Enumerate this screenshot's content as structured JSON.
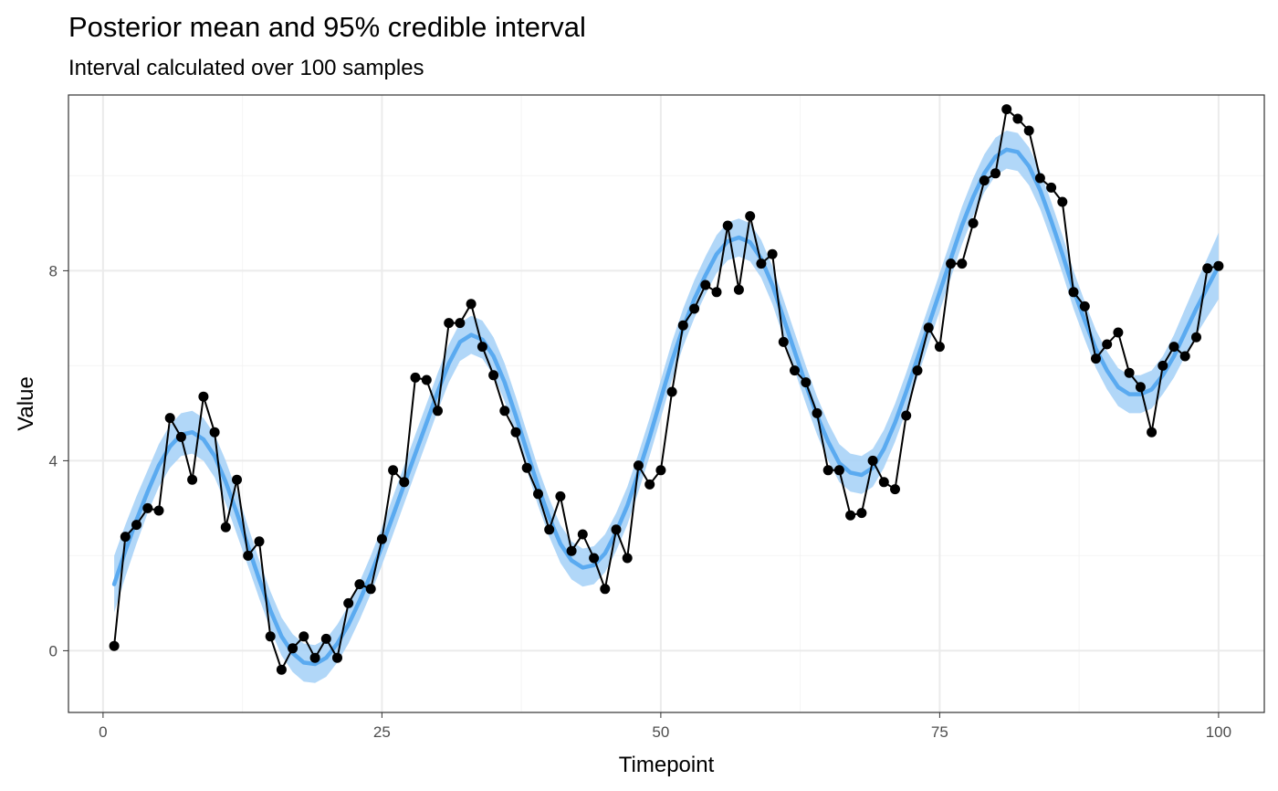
{
  "chart_data": {
    "type": "line",
    "title": "Posterior mean and 95% credible interval",
    "subtitle": "Interval calculated over 100 samples",
    "xlabel": "Timepoint",
    "ylabel": "Value",
    "xlim": [
      -3.1,
      104.1
    ],
    "ylim": [
      -1.3,
      11.7
    ],
    "x_major_ticks": [
      0,
      25,
      50,
      75,
      100
    ],
    "x_tick_labels": [
      "0",
      "25",
      "50",
      "75",
      "100"
    ],
    "x_minor_ticks": [
      12.5,
      37.5,
      62.5,
      87.5
    ],
    "y_major_ticks": [
      0,
      4,
      8
    ],
    "y_tick_labels": [
      "0",
      "4",
      "8"
    ],
    "y_minor_ticks": [
      2,
      6,
      10
    ],
    "grid": true,
    "colors": {
      "observed": "#000000",
      "mean": "#5aaaf0",
      "interval": "#a9d3f7"
    },
    "series": [
      {
        "kind": "observed",
        "x": [
          1,
          2,
          3,
          4,
          5,
          6,
          7,
          8,
          9,
          10,
          11,
          12,
          13,
          14,
          15,
          16,
          17,
          18,
          19,
          20,
          21,
          22,
          23,
          24,
          25,
          26,
          27,
          28,
          29,
          30,
          31,
          32,
          33,
          34,
          35,
          36,
          37,
          38,
          39,
          40,
          41,
          42,
          43,
          44,
          45,
          46,
          47,
          48,
          49,
          50,
          51,
          52,
          53,
          54,
          55,
          56,
          57,
          58,
          59,
          60,
          61,
          62,
          63,
          64,
          65,
          66,
          67,
          68,
          69,
          70,
          71,
          72,
          73,
          74,
          75,
          76,
          77,
          78,
          79,
          80,
          81,
          82,
          83,
          84,
          85,
          86,
          87,
          88,
          89,
          90,
          91,
          92,
          93,
          94,
          95,
          96,
          97,
          98,
          99,
          100
        ],
        "y": [
          0.1,
          2.4,
          2.65,
          3.0,
          2.95,
          4.9,
          4.5,
          3.6,
          5.35,
          4.6,
          2.6,
          3.6,
          2.0,
          2.3,
          0.3,
          -0.4,
          0.05,
          0.3,
          -0.15,
          0.25,
          -0.15,
          1.0,
          1.4,
          1.3,
          2.35,
          3.8,
          3.55,
          5.75,
          5.7,
          5.05,
          6.9,
          6.9,
          7.3,
          6.4,
          5.8,
          5.05,
          4.6,
          3.85,
          3.3,
          2.55,
          3.25,
          2.1,
          2.45,
          1.95,
          1.3,
          2.55,
          1.95,
          3.9,
          3.5,
          3.8,
          5.45,
          6.85,
          7.2,
          7.7,
          7.55,
          8.95,
          7.6,
          9.15,
          8.15,
          8.35,
          6.5,
          5.9,
          5.65,
          5.0,
          3.8,
          3.8,
          2.85,
          2.9,
          4.0,
          3.55,
          3.4,
          4.95,
          5.9,
          6.8,
          6.4,
          8.15,
          8.15,
          9.0,
          9.9,
          10.05,
          11.4,
          11.2,
          10.95,
          9.95,
          9.75,
          9.45,
          7.55,
          7.25,
          6.15,
          6.45,
          6.7,
          5.85,
          5.55,
          4.6,
          6.0,
          6.4,
          6.2,
          6.6,
          8.05,
          8.1
        ]
      },
      {
        "kind": "posterior_mean",
        "x": [
          1,
          2,
          3,
          4,
          5,
          6,
          7,
          8,
          9,
          10,
          11,
          12,
          13,
          14,
          15,
          16,
          17,
          18,
          19,
          20,
          21,
          22,
          23,
          24,
          25,
          26,
          27,
          28,
          29,
          30,
          31,
          32,
          33,
          34,
          35,
          36,
          37,
          38,
          39,
          40,
          41,
          42,
          43,
          44,
          45,
          46,
          47,
          48,
          49,
          50,
          51,
          52,
          53,
          54,
          55,
          56,
          57,
          58,
          59,
          60,
          61,
          62,
          63,
          64,
          65,
          66,
          67,
          68,
          69,
          70,
          71,
          72,
          73,
          74,
          75,
          76,
          77,
          78,
          79,
          80,
          81,
          82,
          83,
          84,
          85,
          86,
          87,
          88,
          89,
          90,
          91,
          92,
          93,
          94,
          95,
          96,
          97,
          98,
          99,
          100
        ],
        "y": [
          1.4,
          2.1,
          2.75,
          3.35,
          3.9,
          4.3,
          4.55,
          4.6,
          4.45,
          4.1,
          3.55,
          2.9,
          2.2,
          1.5,
          0.85,
          0.3,
          -0.05,
          -0.25,
          -0.28,
          -0.15,
          0.15,
          0.55,
          1.05,
          1.6,
          2.2,
          2.85,
          3.5,
          4.15,
          4.8,
          5.45,
          6.05,
          6.5,
          6.65,
          6.55,
          6.2,
          5.65,
          4.95,
          4.2,
          3.45,
          2.8,
          2.25,
          1.9,
          1.75,
          1.8,
          2.05,
          2.5,
          3.05,
          3.75,
          4.5,
          5.3,
          6.1,
          6.8,
          7.4,
          7.9,
          8.35,
          8.62,
          8.7,
          8.6,
          8.25,
          7.7,
          7.0,
          6.3,
          5.6,
          4.95,
          4.4,
          3.95,
          3.75,
          3.7,
          3.85,
          4.25,
          4.8,
          5.45,
          6.15,
          6.85,
          7.55,
          8.25,
          8.95,
          9.55,
          10.05,
          10.4,
          10.55,
          10.5,
          10.2,
          9.7,
          9.05,
          8.35,
          7.6,
          6.95,
          6.35,
          5.9,
          5.55,
          5.4,
          5.4,
          5.5,
          5.8,
          6.2,
          6.7,
          7.2,
          7.65,
          8.1
        ]
      }
    ],
    "interval": {
      "level": "95%",
      "half_width": [
        0.6,
        0.55,
        0.5,
        0.45,
        0.45,
        0.45,
        0.45,
        0.45,
        0.45,
        0.45,
        0.45,
        0.45,
        0.42,
        0.4,
        0.4,
        0.4,
        0.4,
        0.4,
        0.4,
        0.4,
        0.4,
        0.4,
        0.4,
        0.4,
        0.4,
        0.4,
        0.4,
        0.4,
        0.4,
        0.4,
        0.4,
        0.4,
        0.4,
        0.4,
        0.4,
        0.4,
        0.4,
        0.4,
        0.4,
        0.4,
        0.4,
        0.4,
        0.4,
        0.4,
        0.4,
        0.4,
        0.4,
        0.4,
        0.4,
        0.4,
        0.4,
        0.4,
        0.4,
        0.4,
        0.4,
        0.4,
        0.4,
        0.4,
        0.4,
        0.4,
        0.4,
        0.4,
        0.4,
        0.4,
        0.4,
        0.4,
        0.4,
        0.4,
        0.4,
        0.4,
        0.4,
        0.4,
        0.4,
        0.4,
        0.4,
        0.4,
        0.4,
        0.4,
        0.4,
        0.4,
        0.4,
        0.4,
        0.4,
        0.4,
        0.4,
        0.4,
        0.4,
        0.4,
        0.4,
        0.4,
        0.4,
        0.4,
        0.4,
        0.4,
        0.4,
        0.45,
        0.5,
        0.55,
        0.62,
        0.7
      ]
    }
  }
}
